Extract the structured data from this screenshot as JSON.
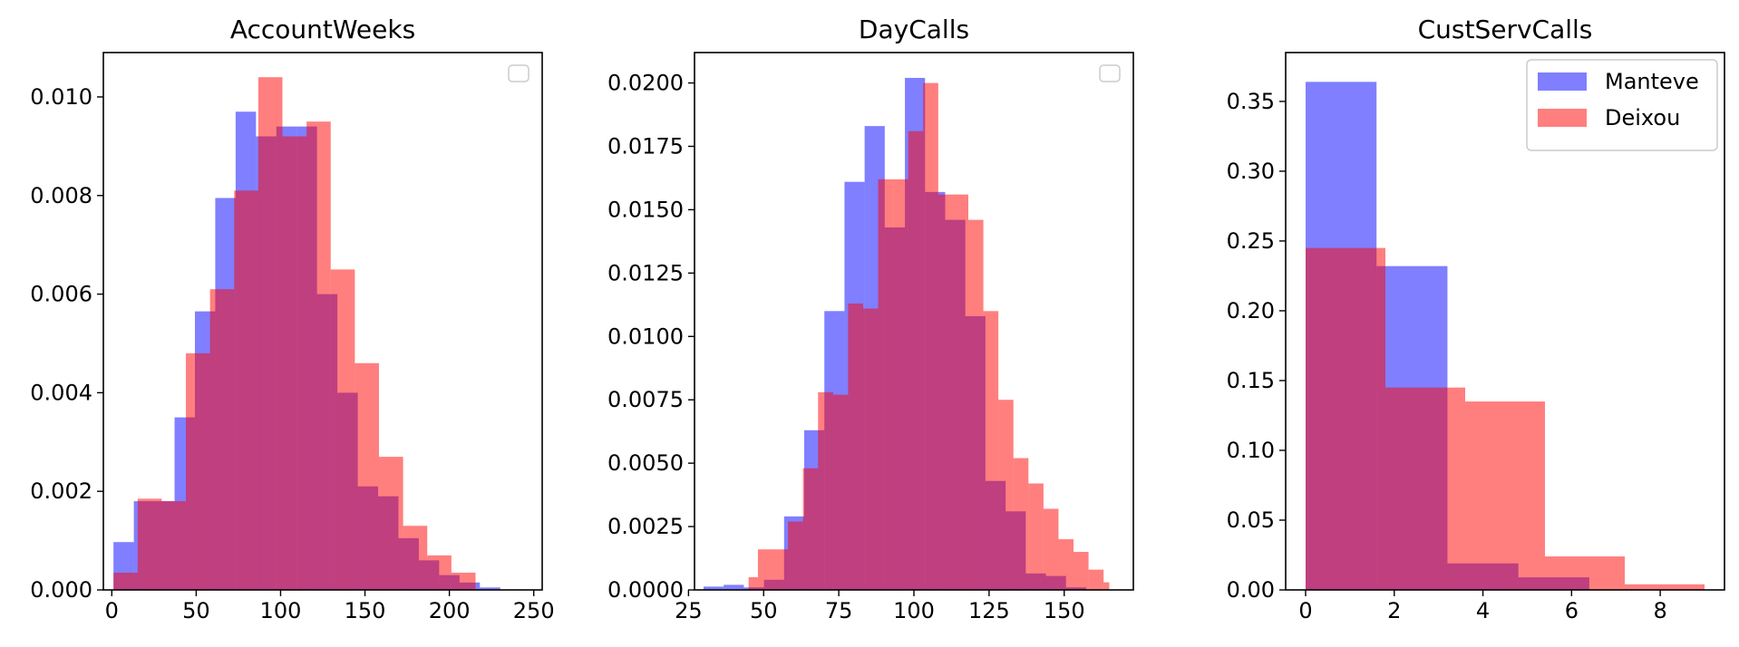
{
  "chart_data": [
    {
      "type": "histogram",
      "title": "AccountWeeks",
      "xlabel": "",
      "ylabel": "",
      "xlim": [
        -5,
        255
      ],
      "ylim": [
        0,
        0.0109
      ],
      "xticks": [
        0,
        50,
        100,
        150,
        200,
        250
      ],
      "xtick_labels": [
        "0",
        "50",
        "100",
        "150",
        "200",
        "250"
      ],
      "yticks": [
        0,
        0.002,
        0.004,
        0.006,
        0.008,
        0.01
      ],
      "ytick_labels": [
        "0.000",
        "0.002",
        "0.004",
        "0.006",
        "0.008",
        "0.010"
      ],
      "legend": {
        "shown": true,
        "placement": "upper right",
        "entries": []
      },
      "series": [
        {
          "color": "#0000ff",
          "edges": [
            1,
            13.06,
            25.12,
            37.18,
            49.24,
            61.3,
            73.36,
            85.42,
            97.48,
            109.54,
            121.6,
            133.66,
            145.72,
            157.78,
            169.84,
            181.9,
            193.96,
            206.02,
            218.08,
            230.14,
            242.2
          ],
          "values": [
            0.00097,
            0.0018,
            0.0018,
            0.0035,
            0.00565,
            0.00795,
            0.0097,
            0.0092,
            0.0094,
            0.0094,
            0.006,
            0.004,
            0.0021,
            0.0019,
            0.00105,
            0.0006,
            0.0003,
            0.00015,
            5e-05,
            0.0
          ]
        },
        {
          "color": "#ff0000",
          "edges": [
            1,
            15.3,
            29.6,
            43.9,
            58.2,
            72.5,
            86.8,
            101.1,
            115.4,
            129.7,
            144,
            158.3,
            172.6,
            186.9,
            201.2,
            215.5
          ],
          "values": [
            0.00035,
            0.00185,
            0.0018,
            0.0048,
            0.0061,
            0.0081,
            0.0104,
            0.0092,
            0.0095,
            0.0065,
            0.0046,
            0.0027,
            0.0013,
            0.0007,
            0.00035
          ]
        }
      ]
    },
    {
      "type": "histogram",
      "title": "DayCalls",
      "xlabel": "",
      "ylabel": "",
      "xlim": [
        27,
        173
      ],
      "ylim": [
        0,
        0.0212
      ],
      "xticks": [
        25,
        50,
        75,
        100,
        125,
        150
      ],
      "xtick_labels": [
        "25",
        "50",
        "75",
        "100",
        "125",
        "150"
      ],
      "yticks": [
        0,
        0.0025,
        0.005,
        0.0075,
        0.01,
        0.0125,
        0.015,
        0.0175,
        0.02
      ],
      "ytick_labels": [
        "0.0000",
        "0.0025",
        "0.0050",
        "0.0075",
        "0.0100",
        "0.0125",
        "0.0150",
        "0.0175",
        "0.0200"
      ],
      "legend": {
        "shown": true,
        "placement": "upper right",
        "entries": []
      },
      "series": [
        {
          "color": "#0000ff",
          "edges": [
            30,
            36.7,
            43.4,
            50.1,
            56.8,
            63.5,
            70.2,
            76.9,
            83.6,
            90.3,
            97,
            103.7,
            110.4,
            117.1,
            123.8,
            130.5,
            137.2,
            143.9,
            150.6,
            157.3
          ],
          "values": [
            0.00013,
            0.0002,
            0.0001,
            0.0004,
            0.0029,
            0.0063,
            0.011,
            0.0161,
            0.0183,
            0.0143,
            0.0202,
            0.0157,
            0.0146,
            0.0108,
            0.0043,
            0.0031,
            0.00065,
            0.00055,
            0.0001
          ]
        },
        {
          "color": "#ff0000",
          "edges": [
            45,
            48.1,
            53.1,
            58.1,
            63.1,
            68.1,
            73.1,
            78.1,
            83.1,
            88.1,
            93.1,
            98.1,
            103.1,
            108.1,
            113.1,
            118.1,
            123.1,
            128.1,
            133.1,
            138.1,
            143.1,
            148.1,
            153.1,
            158.1,
            163.1,
            165
          ],
          "values": [
            0.0005,
            0.0016,
            0.0016,
            0.0027,
            0.0048,
            0.0078,
            0.0077,
            0.0113,
            0.0111,
            0.0162,
            0.0162,
            0.0181,
            0.02,
            0.0156,
            0.0156,
            0.0146,
            0.011,
            0.0075,
            0.0052,
            0.0042,
            0.0032,
            0.002,
            0.0015,
            0.0008,
            0.0003
          ]
        }
      ]
    },
    {
      "type": "histogram",
      "title": "CustServCalls",
      "xlabel": "",
      "ylabel": "",
      "xlim": [
        -0.45,
        9.45
      ],
      "ylim": [
        0,
        0.385
      ],
      "xticks": [
        0,
        2,
        4,
        6,
        8
      ],
      "xtick_labels": [
        "0",
        "2",
        "4",
        "6",
        "8"
      ],
      "yticks": [
        0,
        0.05,
        0.1,
        0.15,
        0.2,
        0.25,
        0.3,
        0.35
      ],
      "ytick_labels": [
        "0.00",
        "0.05",
        "0.10",
        "0.15",
        "0.20",
        "0.25",
        "0.30",
        "0.35"
      ],
      "legend": {
        "shown": true,
        "placement": "upper right",
        "entries": [
          "Manteve",
          "Deixou"
        ]
      },
      "series": [
        {
          "name": "Manteve",
          "color": "#0000ff",
          "edges": [
            0,
            1.6,
            3.2,
            4.8,
            6.4
          ],
          "values": [
            0.364,
            0.232,
            0.019,
            0.009
          ]
        },
        {
          "name": "Deixou",
          "color": "#ff0000",
          "edges": [
            0,
            1.8,
            3.6,
            5.4,
            7.2,
            9.0
          ],
          "values": [
            0.245,
            0.145,
            0.135,
            0.024,
            0.004
          ]
        }
      ]
    }
  ]
}
